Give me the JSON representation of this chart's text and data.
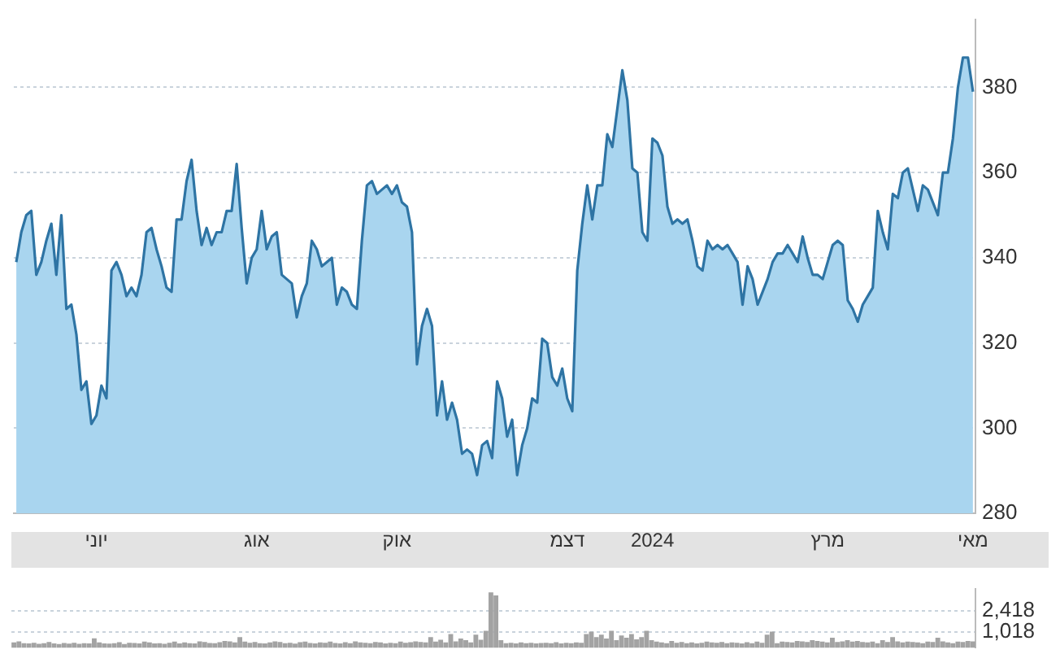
{
  "chart_data": [
    {
      "type": "area",
      "categories": [
        null,
        null,
        null,
        null,
        null,
        null,
        null,
        null,
        null,
        null,
        null,
        null,
        null,
        null,
        null,
        null,
        "יוני",
        null,
        null,
        null,
        null,
        null,
        null,
        null,
        null,
        null,
        null,
        null,
        null,
        null,
        null,
        null,
        null,
        null,
        null,
        null,
        null,
        null,
        null,
        null,
        null,
        null,
        null,
        null,
        null,
        null,
        null,
        null,
        "אוג",
        null,
        null,
        null,
        null,
        null,
        null,
        null,
        null,
        null,
        null,
        null,
        null,
        null,
        null,
        null,
        null,
        null,
        null,
        null,
        null,
        null,
        null,
        null,
        null,
        null,
        null,
        null,
        "אוק",
        null,
        null,
        null,
        null,
        null,
        null,
        null,
        null,
        null,
        null,
        null,
        null,
        null,
        null,
        null,
        null,
        null,
        null,
        null,
        null,
        null,
        null,
        null,
        null,
        null,
        null,
        null,
        null,
        null,
        null,
        null,
        null,
        null,
        "דצמ",
        null,
        null,
        null,
        null,
        null,
        null,
        null,
        null,
        null,
        null,
        null,
        null,
        null,
        null,
        null,
        null,
        "2024",
        null,
        null,
        null,
        null,
        null,
        null,
        null,
        null,
        null,
        null,
        null,
        null,
        null,
        null,
        null,
        null,
        null,
        null,
        null,
        null,
        null,
        null,
        null,
        null,
        null,
        null,
        null,
        null,
        null,
        null,
        null,
        null,
        null,
        null,
        "מרץ",
        null,
        null,
        null,
        null,
        null,
        null,
        null,
        null,
        null,
        null,
        null,
        null,
        null,
        null,
        null,
        null,
        null,
        null,
        null,
        null,
        null,
        null,
        null,
        null,
        null,
        null,
        null,
        null,
        "מאי"
      ],
      "series": [
        {
          "color": "#2e74a4",
          "values": [
            339,
            346,
            350,
            351,
            336,
            339,
            344,
            348,
            336,
            350,
            328,
            329,
            322,
            309,
            311,
            301,
            303,
            310,
            307,
            337,
            339,
            336,
            331,
            333,
            331,
            336,
            346,
            347,
            342,
            338,
            333,
            332,
            349,
            349,
            358,
            363,
            351,
            343,
            347,
            343,
            346,
            346,
            351,
            351,
            362,
            347,
            334,
            340,
            342,
            351,
            342,
            345,
            346,
            336,
            335,
            334,
            326,
            331,
            334,
            344,
            342,
            338,
            339,
            340,
            329,
            333,
            332,
            329,
            328,
            344,
            357,
            358,
            355,
            356,
            357,
            355,
            357,
            353,
            352,
            346,
            315,
            324,
            328,
            324,
            303,
            311,
            302,
            306,
            302,
            294,
            295,
            294,
            289,
            296,
            297,
            293,
            311,
            307,
            298,
            302,
            289,
            296,
            300,
            307,
            306,
            321,
            320,
            312,
            310,
            314,
            307,
            304,
            337,
            348,
            357,
            349,
            357,
            357,
            369,
            366,
            375,
            384,
            377,
            361,
            360,
            346,
            344,
            368,
            367,
            364,
            352,
            348,
            349,
            348,
            349,
            344,
            338,
            337,
            344,
            342,
            343,
            342,
            343,
            341,
            339,
            329,
            338,
            335,
            329,
            332,
            335,
            339,
            341,
            341,
            343,
            341,
            339,
            345,
            340,
            336,
            336,
            335,
            339,
            343,
            344,
            343,
            330,
            328,
            325,
            329,
            331,
            333,
            351,
            346,
            342,
            355,
            354,
            360,
            361,
            356,
            351,
            357,
            356,
            353,
            350,
            360,
            360,
            368,
            380,
            387,
            387,
            379
          ]
        }
      ],
      "ylim": [
        280,
        396
      ],
      "yticks": [
        280,
        300,
        320,
        340,
        360,
        380
      ],
      "grid": "y",
      "legend": false
    },
    {
      "type": "bar",
      "categories": [
        null,
        null,
        null,
        null,
        null,
        null,
        null,
        null,
        null,
        null,
        null,
        null,
        null,
        null,
        null,
        null,
        null,
        null,
        null,
        null,
        null,
        null,
        null,
        null,
        null,
        null,
        null,
        null,
        null,
        null,
        null,
        null,
        null,
        null,
        null,
        null,
        null,
        null,
        null,
        null,
        null,
        null,
        null,
        null,
        null,
        null,
        null,
        null,
        null,
        null,
        null,
        null,
        null,
        null,
        null,
        null,
        null,
        null,
        null,
        null,
        null,
        null,
        null,
        null,
        null,
        null,
        null,
        null,
        null,
        null,
        null,
        null,
        null,
        null,
        null,
        null,
        null,
        null,
        null,
        null,
        null,
        null,
        null,
        null,
        null,
        null,
        null,
        null,
        null,
        null,
        null,
        null,
        null,
        null,
        null,
        null,
        null,
        null,
        null,
        null,
        null,
        null,
        null,
        null,
        null,
        null,
        null,
        null,
        null,
        null,
        null,
        null,
        null,
        null,
        null,
        null,
        null,
        null,
        null,
        null,
        null,
        null,
        null,
        null,
        null,
        null,
        null,
        null,
        null,
        null,
        null,
        null,
        null,
        null,
        null,
        null,
        null,
        null,
        null,
        null,
        null,
        null,
        null,
        null,
        null,
        null,
        null,
        null,
        null,
        null,
        null,
        null,
        null,
        null,
        null,
        null,
        null,
        null,
        null,
        null,
        null,
        null,
        null,
        null,
        null,
        null,
        null,
        null,
        null,
        null,
        null,
        null,
        null,
        null,
        null,
        null,
        null,
        null,
        null,
        null,
        null,
        null,
        null,
        null,
        null,
        null,
        null,
        null,
        null,
        null,
        null,
        null
      ],
      "series": [
        {
          "color": "#a3a3a3",
          "values": [
            350,
            420,
            300,
            280,
            330,
            260,
            300,
            380,
            290,
            250,
            310,
            270,
            330,
            260,
            300,
            280,
            620,
            350,
            290,
            270,
            300,
            360,
            250,
            330,
            310,
            290,
            410,
            350,
            280,
            300,
            260,
            330,
            400,
            280,
            350,
            300,
            290,
            420,
            380,
            310,
            300,
            360,
            450,
            420,
            350,
            700,
            400,
            330,
            380,
            300,
            290,
            350,
            420,
            380,
            300,
            330,
            270,
            360,
            400,
            310,
            290,
            350,
            330,
            400,
            310,
            280,
            360,
            300,
            420,
            350,
            330,
            300,
            380,
            350,
            290,
            320,
            300,
            400,
            330,
            360,
            420,
            380,
            350,
            700,
            400,
            520,
            350,
            900,
            420,
            600,
            500,
            350,
            850,
            520,
            1100,
            3600,
            3400,
            500,
            300,
            330,
            280,
            350,
            300,
            330,
            290,
            310,
            320,
            300,
            360,
            290,
            330,
            300,
            350,
            320,
            900,
            1050,
            700,
            850,
            600,
            1100,
            500,
            800,
            650,
            900,
            550,
            700,
            1100,
            500,
            400,
            350,
            300,
            450,
            320,
            380,
            300,
            350,
            280,
            320,
            400,
            350,
            330,
            380,
            300,
            350,
            320,
            280,
            360,
            300,
            400,
            330,
            850,
            1050,
            300,
            400,
            380,
            350,
            450,
            420,
            380,
            500,
            450,
            400,
            350,
            650,
            380,
            420,
            500,
            400,
            450,
            380,
            350,
            400,
            300,
            500,
            380,
            700,
            420,
            350,
            400,
            380,
            350,
            300,
            400,
            380,
            650,
            420,
            350,
            300,
            400,
            380,
            450,
            420
          ]
        }
      ],
      "ylim": [
        0,
        3850
      ],
      "yticks": [
        {
          "value": 1018,
          "label": "1,018"
        },
        {
          "value": 2418,
          "label": "2,418"
        }
      ],
      "grid": "y",
      "legend": false,
      "tick_labels": "y"
    }
  ]
}
